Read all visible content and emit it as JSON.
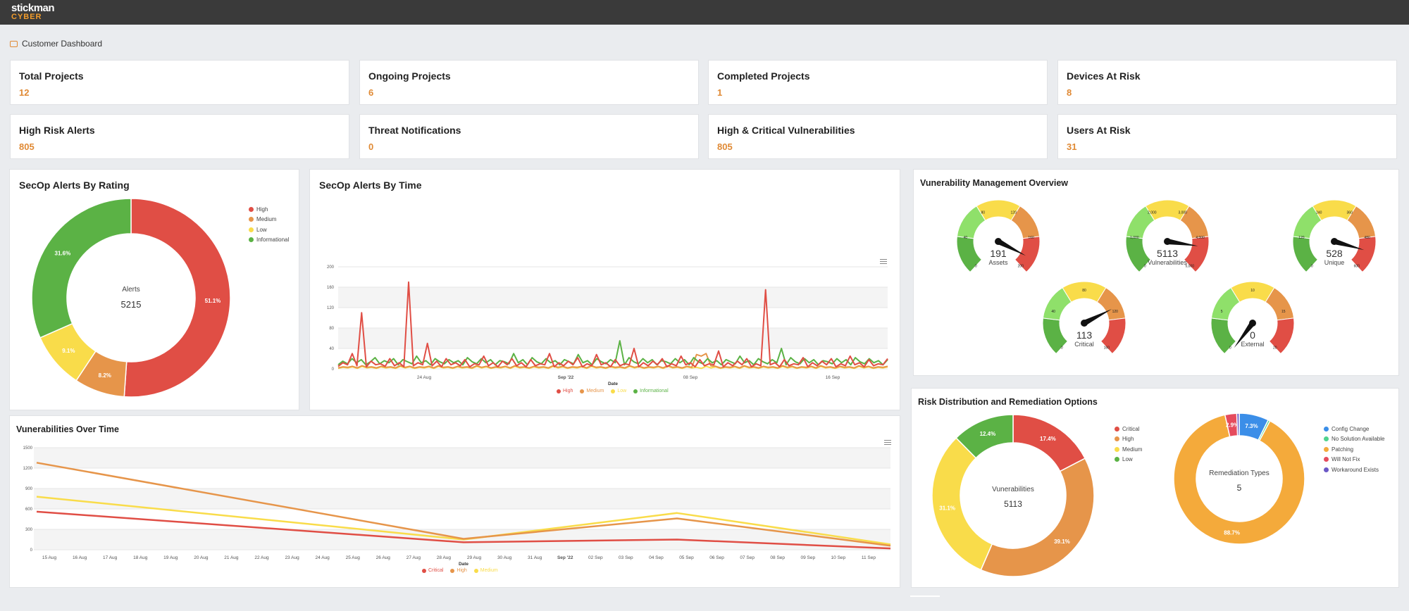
{
  "app": {
    "logo_line1": "stickman",
    "logo_line2": "CYBER",
    "breadcrumb": "Customer Dashboard"
  },
  "stats": [
    {
      "label": "Total Projects",
      "value": "12"
    },
    {
      "label": "Ongoing Projects",
      "value": "6"
    },
    {
      "label": "Completed Projects",
      "value": "1"
    },
    {
      "label": "Devices At Risk",
      "value": "8"
    },
    {
      "label": "High Risk Alerts",
      "value": "805"
    },
    {
      "label": "Threat Notifications",
      "value": "0"
    },
    {
      "label": "High & Critical Vulnerabilities",
      "value": "805"
    },
    {
      "label": "Users At Risk",
      "value": "31"
    }
  ],
  "colors": {
    "red": "#e04e45",
    "orange": "#e6954a",
    "yellow": "#f9dc4a",
    "green": "#5bb245",
    "blue": "#3b8ee8",
    "teal": "#4fd38e",
    "patching": "#f4aa3b",
    "willnotfix": "#e54b5d",
    "purple": "#6b58c6",
    "accent": "#e08a35"
  },
  "panels": {
    "rating": {
      "title": "SecOp Alerts By Rating",
      "center_label": "Alerts",
      "center_value": "5215"
    },
    "time": {
      "title": "SecOp Alerts By Time",
      "xlabel": "Date"
    },
    "vmo": {
      "title": "Vunerability Management Overview"
    },
    "vot": {
      "title": "Vunerabilities Over Time",
      "xlabel": "Date"
    },
    "risk": {
      "title": "Risk Distribution and Remediation Options",
      "donut1_label": "Vunerabilities",
      "donut1_value": "5113",
      "donut2_label": "Remediation Types",
      "donut2_value": "5"
    }
  },
  "chart_data": [
    {
      "type": "pie",
      "chart": "secop-alerts-by-rating",
      "categories": [
        "High",
        "Medium",
        "Low",
        "Informational"
      ],
      "values": [
        51.1,
        8.2,
        9.1,
        31.6
      ],
      "labels": [
        "51.1%",
        "8.2%",
        "9.1%",
        "31.6%"
      ],
      "legend": "top-right",
      "total": "5215"
    },
    {
      "type": "line",
      "chart": "secop-alerts-by-time",
      "xlabel": "Date",
      "ylim": [
        0,
        200
      ],
      "yticks": [
        "200",
        "160",
        "120",
        "80",
        "40",
        "0"
      ],
      "xticks": [
        "24 Aug",
        "Sep '22",
        "08 Sep",
        "16 Sep"
      ],
      "series": [
        {
          "name": "High",
          "values": [
            5,
            12,
            8,
            30,
            6,
            110,
            4,
            15,
            8,
            10,
            5,
            20,
            6,
            12,
            4,
            170,
            6,
            12,
            8,
            50,
            6,
            15,
            4,
            20,
            8,
            12,
            6,
            18,
            4,
            10,
            8,
            25,
            6,
            12,
            4,
            15,
            8,
            20,
            6,
            12,
            4,
            18,
            6,
            10,
            8,
            30,
            4,
            12,
            6,
            15,
            8,
            22,
            4,
            10,
            6,
            28,
            8,
            12,
            4,
            18,
            6,
            10,
            8,
            40,
            4,
            12,
            6,
            15,
            8,
            20,
            4,
            10,
            6,
            25,
            8,
            12,
            4,
            18,
            6,
            10,
            8,
            35,
            4,
            12,
            6,
            15,
            8,
            20,
            4,
            10,
            6,
            155,
            8,
            12,
            4,
            18,
            6,
            10,
            8,
            22,
            4,
            12,
            6,
            15,
            8,
            20,
            4,
            10,
            6,
            25,
            8,
            12,
            4,
            18,
            6,
            10,
            8,
            20
          ]
        },
        {
          "name": "Medium",
          "values": [
            2,
            4,
            3,
            5,
            2,
            6,
            3,
            4,
            2,
            5,
            3,
            4,
            2,
            6,
            3,
            5,
            2,
            4,
            3,
            5,
            2,
            6,
            3,
            4,
            2,
            5,
            3,
            4,
            2,
            6,
            3,
            5,
            2,
            4,
            3,
            5,
            2,
            6,
            3,
            4,
            2,
            5,
            3,
            4,
            2,
            6,
            3,
            5,
            2,
            4,
            3,
            5,
            2,
            6,
            3,
            4,
            2,
            5,
            3,
            4,
            2,
            6,
            3,
            5,
            2,
            4,
            3,
            5,
            2,
            6,
            3,
            4,
            2,
            5,
            3,
            28,
            25,
            30,
            6,
            5,
            2,
            4,
            3,
            5,
            2,
            6,
            3,
            4,
            2,
            5,
            3,
            4,
            2,
            6,
            3,
            5,
            2,
            4,
            3,
            5,
            2,
            6,
            3,
            4,
            2,
            5,
            3,
            4,
            2,
            6,
            3,
            5,
            2,
            4,
            3,
            5
          ]
        },
        {
          "name": "Low",
          "values": [
            1,
            3,
            2,
            4,
            1,
            5,
            2,
            3,
            1,
            4,
            2,
            3,
            1,
            5,
            2,
            4,
            1,
            3,
            2,
            4,
            1,
            5,
            2,
            3,
            1,
            4,
            2,
            3,
            1,
            5,
            2,
            4,
            1,
            3,
            2,
            4,
            1,
            5,
            2,
            3,
            1,
            4,
            2,
            3,
            1,
            5,
            2,
            4,
            1,
            3,
            2,
            4,
            1,
            5,
            2,
            3,
            1,
            4,
            2,
            3,
            1,
            5,
            2,
            4,
            1,
            3,
            2,
            4,
            1,
            5,
            2,
            3,
            1,
            4,
            2,
            3,
            1,
            5,
            2,
            4,
            1,
            3,
            2,
            4,
            1,
            5,
            2,
            3,
            1,
            4,
            2,
            3,
            1,
            5,
            2,
            4,
            1,
            3,
            2,
            4,
            1,
            5,
            2,
            3,
            1,
            4,
            2,
            3,
            1,
            5,
            2,
            4,
            1,
            3,
            2,
            4
          ]
        },
        {
          "name": "Informational",
          "values": [
            8,
            15,
            10,
            20,
            12,
            18,
            8,
            14,
            22,
            10,
            16,
            12,
            20,
            8,
            18,
            14,
            10,
            25,
            12,
            16,
            8,
            20,
            14,
            10,
            18,
            12,
            16,
            8,
            22,
            14,
            10,
            20,
            12,
            18,
            8,
            16,
            14,
            10,
            30,
            12,
            18,
            8,
            22,
            14,
            10,
            20,
            12,
            16,
            8,
            18,
            14,
            10,
            28,
            12,
            16,
            8,
            20,
            14,
            10,
            18,
            12,
            55,
            8,
            22,
            14,
            10,
            20,
            12,
            18,
            8,
            16,
            14,
            10,
            20,
            12,
            18,
            8,
            22,
            14,
            10,
            20,
            12,
            16,
            8,
            18,
            14,
            10,
            25,
            12,
            16,
            8,
            20,
            14,
            10,
            18,
            12,
            40,
            8,
            22,
            14,
            10,
            20,
            12,
            18,
            8,
            16,
            14,
            10,
            20,
            12,
            18,
            8,
            22,
            14,
            10,
            20,
            12,
            16,
            8,
            18
          ]
        }
      ],
      "legend": "bottom"
    },
    {
      "type": "gauge",
      "chart": "vunerability-management-overview",
      "gauges": [
        {
          "label": "Assets",
          "value": "191",
          "ticks": [
            "0",
            "40",
            "80",
            "120",
            "160",
            "200"
          ]
        },
        {
          "label": "Vulnerabilities",
          "value": "5113",
          "ticks": [
            "0",
            "1,000",
            "2,000",
            "3,000",
            "4,000",
            "5,000"
          ]
        },
        {
          "label": "Unique",
          "value": "528",
          "ticks": [
            "0",
            "120",
            "240",
            "360",
            "480",
            "600"
          ]
        },
        {
          "label": "Critical",
          "value": "113",
          "ticks": [
            "0",
            "40",
            "80",
            "120",
            "160"
          ]
        },
        {
          "label": "External",
          "value": "0",
          "ticks": [
            "0",
            "5",
            "10",
            "15",
            "20"
          ]
        }
      ]
    },
    {
      "type": "line",
      "chart": "vunerabilities-over-time",
      "xlabel": "Date",
      "ylim": [
        0,
        1500
      ],
      "yticks": [
        "1500",
        "1200",
        "900",
        "600",
        "300",
        "0"
      ],
      "categories": [
        "15 Aug",
        "16 Aug",
        "17 Aug",
        "18 Aug",
        "19 Aug",
        "20 Aug",
        "21 Aug",
        "22 Aug",
        "23 Aug",
        "24 Aug",
        "25 Aug",
        "26 Aug",
        "27 Aug",
        "28 Aug",
        "29 Aug",
        "30 Aug",
        "31 Aug",
        "Sep '22",
        "02 Sep",
        "03 Sep",
        "04 Sep",
        "05 Sep",
        "06 Sep",
        "07 Sep",
        "08 Sep",
        "09 Sep",
        "10 Sep",
        "11 Sep"
      ],
      "series": [
        {
          "name": "Critical",
          "points": [
            [
              0,
              560
            ],
            [
              14,
              110
            ],
            [
              21,
              150
            ],
            [
              28,
              20
            ]
          ]
        },
        {
          "name": "High",
          "points": [
            [
              0,
              1280
            ],
            [
              14,
              160
            ],
            [
              21,
              460
            ],
            [
              28,
              60
            ]
          ]
        },
        {
          "name": "Medium",
          "points": [
            [
              0,
              780
            ],
            [
              14,
              150
            ],
            [
              21,
              540
            ],
            [
              28,
              80
            ]
          ]
        }
      ],
      "legend": "bottom"
    },
    {
      "type": "pie",
      "chart": "risk-distribution",
      "categories": [
        "Critical",
        "High",
        "Medium",
        "Low"
      ],
      "values": [
        17.4,
        39.1,
        31.1,
        12.4
      ],
      "labels": [
        "17.4%",
        "39.1%",
        "31.1%",
        "12.4%"
      ],
      "legend": "top-right"
    },
    {
      "type": "pie",
      "chart": "remediation-options",
      "categories": [
        "Config Change",
        "No Solution Available",
        "Patching",
        "Will Not Fix",
        "Workaround Exists"
      ],
      "values": [
        7.3,
        0.5,
        88.7,
        2.9,
        0.6
      ],
      "labels": [
        "7.3%",
        "",
        "88.7%",
        "2.9%",
        ""
      ],
      "legend": "top-right"
    }
  ]
}
